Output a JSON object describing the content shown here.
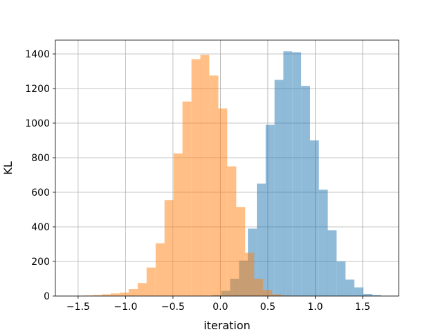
{
  "chart_data": {
    "type": "bar",
    "title": "",
    "xlabel": "iteration",
    "ylabel": "KL",
    "xlim": [
      -1.74,
      1.88
    ],
    "ylim": [
      0,
      1480
    ],
    "grid": true,
    "x_ticks": [
      -1.5,
      -1.0,
      -0.5,
      0.0,
      0.5,
      1.0,
      1.5
    ],
    "x_tick_labels": [
      "−1.5",
      "−1.0",
      "−0.5",
      "0.0",
      "0.5",
      "1.0",
      "1.5"
    ],
    "y_ticks": [
      0,
      200,
      400,
      600,
      800,
      1000,
      1200,
      1400
    ],
    "y_tick_labels": [
      "0",
      "200",
      "400",
      "600",
      "800",
      "1000",
      "1200",
      "1400"
    ],
    "series": [
      {
        "color": "#1f77b4",
        "opacity": 0.5,
        "bin_width": 0.0936,
        "bin_starts": [
          -0.084,
          0.009,
          0.103,
          0.197,
          0.29,
          0.384,
          0.477,
          0.571,
          0.664,
          0.758,
          0.852,
          0.945,
          1.039,
          1.132,
          1.226,
          1.319,
          1.413,
          1.507,
          1.6
        ],
        "values": [
          5,
          30,
          100,
          205,
          390,
          650,
          990,
          1250,
          1415,
          1410,
          1215,
          900,
          615,
          380,
          200,
          95,
          50,
          12,
          5
        ]
      },
      {
        "color": "#ff7f0e",
        "opacity": 0.5,
        "bin_width": 0.0945,
        "bin_starts": [
          -1.534,
          -1.439,
          -1.345,
          -1.25,
          -1.156,
          -1.061,
          -0.967,
          -0.872,
          -0.778,
          -0.683,
          -0.589,
          -0.494,
          -0.4,
          -0.305,
          -0.211,
          -0.116,
          -0.022,
          0.073,
          0.167,
          0.262,
          0.356,
          0.451,
          0.545,
          0.64,
          0.734
        ],
        "values": [
          2,
          3,
          5,
          10,
          15,
          20,
          40,
          75,
          165,
          305,
          555,
          825,
          1125,
          1370,
          1395,
          1275,
          1085,
          750,
          515,
          250,
          100,
          35,
          10,
          3,
          1
        ]
      }
    ]
  }
}
